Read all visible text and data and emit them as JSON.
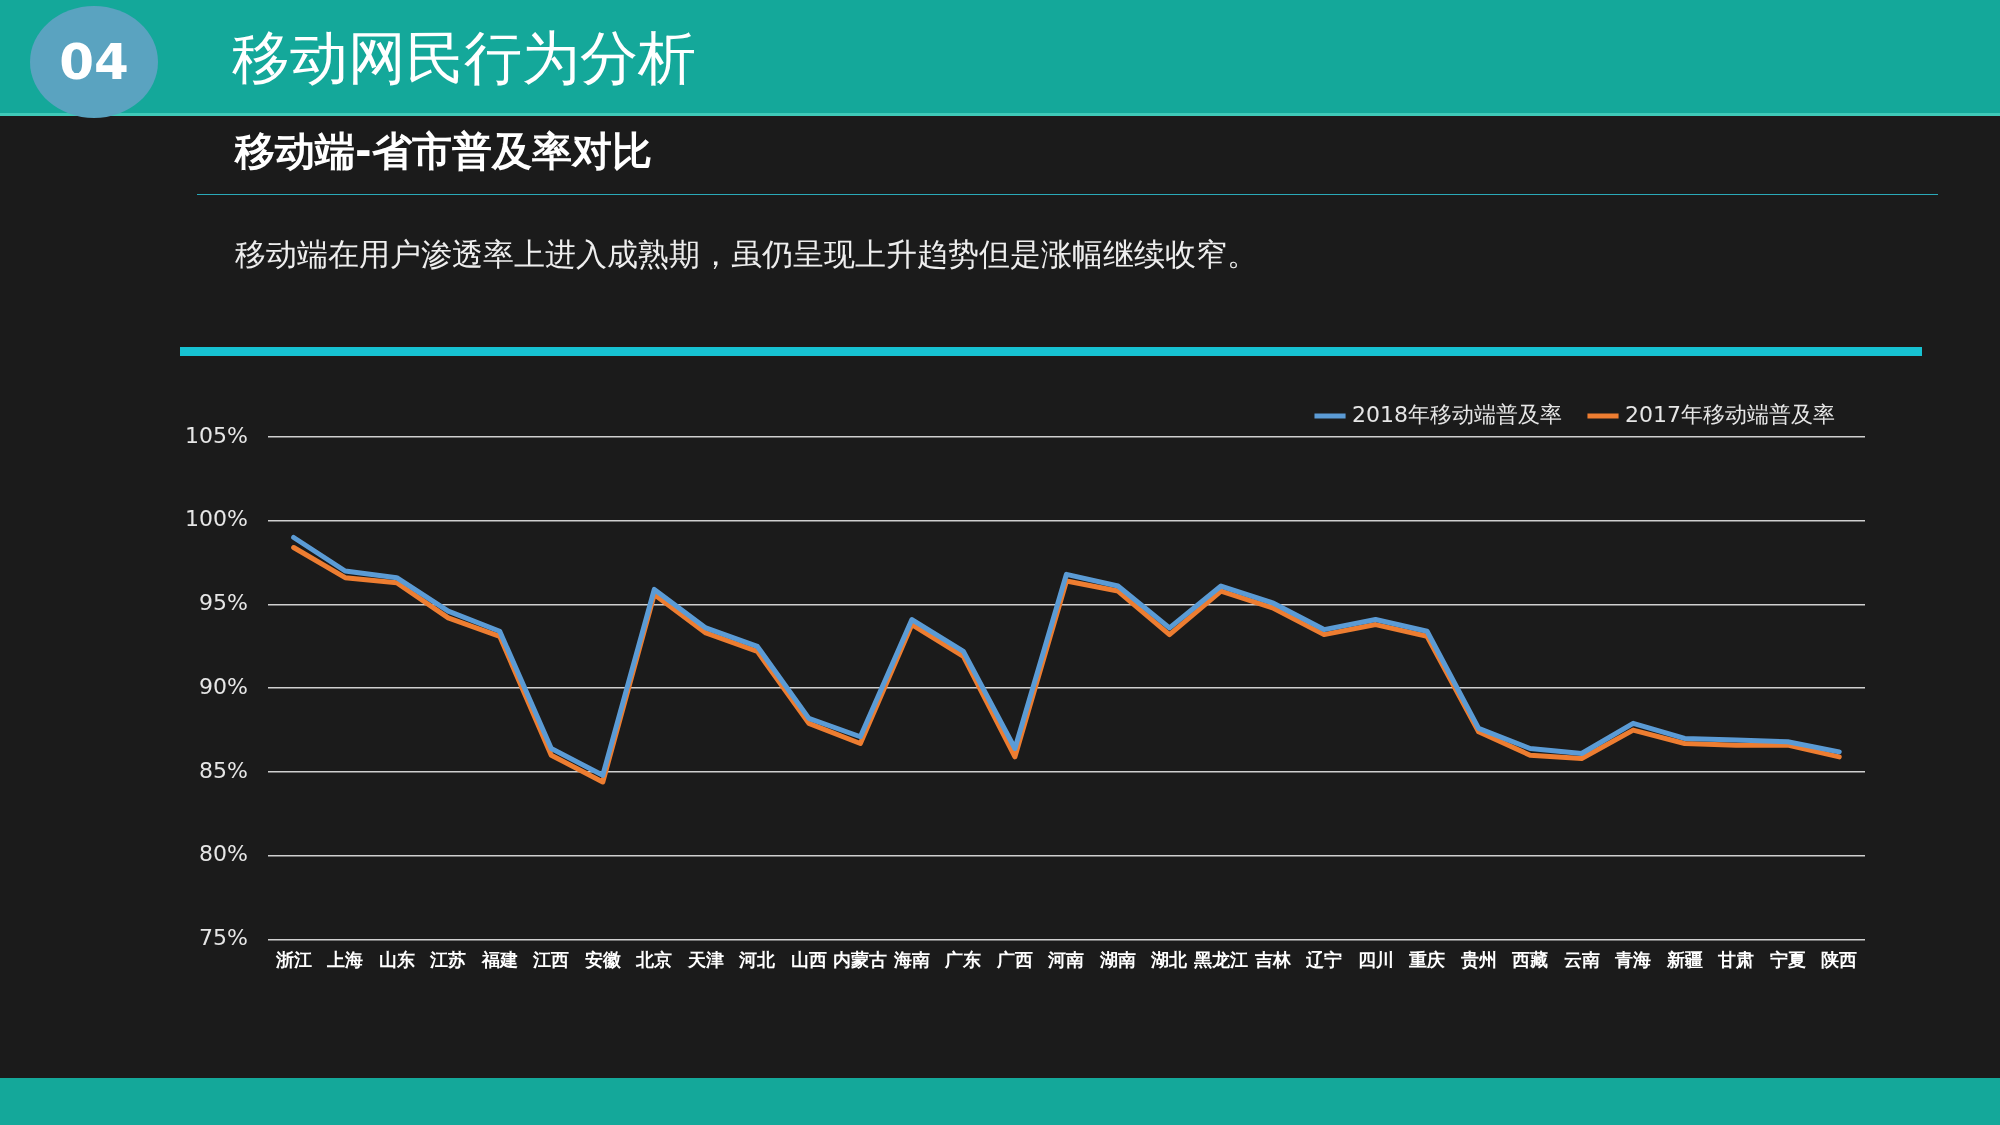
{
  "chart_data": {
    "type": "line",
    "title": "移动网民行为分析",
    "subtitle": "移动端-省市普及率对比",
    "annotations": [
      "04",
      "移动端在用户渗透率上进入成熟期，虽仍呈现上升趋势但是涨幅继续收窄。"
    ],
    "categories": [
      "浙江",
      "上海",
      "山东",
      "江苏",
      "福建",
      "江西",
      "安徽",
      "北京",
      "天津",
      "河北",
      "山西",
      "内蒙古",
      "海南",
      "广东",
      "广西",
      "河南",
      "湖南",
      "湖北",
      "黑龙江",
      "吉林",
      "辽宁",
      "四川",
      "重庆",
      "贵州",
      "西藏",
      "云南",
      "青海",
      "新疆",
      "甘肃",
      "宁夏",
      "陕西"
    ],
    "series": [
      {
        "name": "2018年移动端普及率",
        "color": "#5b9bd5",
        "values": [
          99.0,
          97.0,
          96.6,
          94.6,
          93.4,
          86.4,
          84.8,
          95.9,
          93.6,
          92.5,
          88.2,
          87.1,
          94.1,
          92.2,
          86.4,
          96.8,
          96.1,
          93.6,
          96.1,
          95.1,
          93.5,
          94.1,
          93.4,
          87.6,
          86.4,
          86.1,
          87.9,
          87.0,
          86.9,
          86.8,
          86.2
        ]
      },
      {
        "name": "2017年移动端普及率",
        "color": "#ed7d31",
        "values": [
          98.4,
          96.6,
          96.3,
          94.2,
          93.1,
          86.0,
          84.4,
          95.6,
          93.3,
          92.2,
          87.9,
          86.7,
          93.8,
          91.9,
          85.9,
          96.4,
          95.8,
          93.2,
          95.8,
          94.8,
          93.2,
          93.8,
          93.1,
          87.4,
          86.0,
          85.8,
          87.5,
          86.7,
          86.6,
          86.6,
          85.9
        ]
      }
    ],
    "ylim": [
      75,
      105
    ],
    "yticks": [
      {
        "value": 75,
        "label": "75%"
      },
      {
        "value": 80,
        "label": "80%"
      },
      {
        "value": 85,
        "label": "85%"
      },
      {
        "value": 90,
        "label": "90%"
      },
      {
        "value": 95,
        "label": "95%"
      },
      {
        "value": 100,
        "label": "100%"
      },
      {
        "value": 105,
        "label": "105%"
      }
    ],
    "grid": "y",
    "legend": "top right",
    "marker": "none",
    "line_style": "solid"
  }
}
